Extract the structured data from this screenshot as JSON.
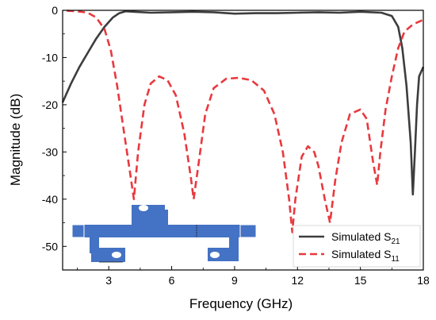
{
  "chart_data": {
    "type": "line",
    "xlabel": "Frequency (GHz)",
    "ylabel": "Magnitude (dB)",
    "xlim": [
      0.8,
      18
    ],
    "ylim": [
      -55,
      0
    ],
    "xticks": [
      3,
      6,
      9,
      12,
      15,
      18
    ],
    "yticks": [
      0,
      -10,
      -20,
      -30,
      -40,
      -50
    ],
    "grid": false,
    "legend_position": "bottom-right",
    "series": [
      {
        "name": "Simulated S21",
        "legend_main": "Simulated S",
        "legend_sub": "21",
        "color": "#3d3d3d",
        "style": "solid",
        "x": [
          0.8,
          1.2,
          1.6,
          2.0,
          2.4,
          2.8,
          3.2,
          3.5,
          3.8,
          4.2,
          5.0,
          6.0,
          7.0,
          8.0,
          9.0,
          10.0,
          11.0,
          12.0,
          13.0,
          14.0,
          15.0,
          16.0,
          16.5,
          16.8,
          17.0,
          17.2,
          17.4,
          17.5,
          17.6,
          17.7,
          17.8,
          18.0
        ],
        "y": [
          -19.5,
          -15.5,
          -12.0,
          -9.0,
          -6.0,
          -3.5,
          -1.5,
          -0.6,
          -0.2,
          -0.3,
          -0.5,
          -0.4,
          -0.3,
          -0.4,
          -0.7,
          -0.6,
          -0.6,
          -0.5,
          -0.4,
          -0.5,
          -0.3,
          -0.5,
          -1.2,
          -3.5,
          -8.0,
          -16.0,
          -28.0,
          -39.0,
          -30.0,
          -20.0,
          -14.0,
          -12.0
        ]
      },
      {
        "name": "Simulated S11",
        "legend_main": "Simulated S",
        "legend_sub": "11",
        "color": "#e8393f",
        "style": "dashed",
        "x": [
          1.0,
          1.5,
          2.0,
          2.4,
          2.8,
          3.1,
          3.4,
          3.7,
          4.0,
          4.2,
          4.4,
          4.7,
          5.0,
          5.4,
          5.8,
          6.2,
          6.6,
          6.9,
          7.05,
          7.3,
          7.6,
          8.0,
          8.6,
          9.2,
          9.8,
          10.4,
          10.9,
          11.3,
          11.6,
          11.75,
          11.9,
          12.2,
          12.5,
          12.8,
          13.0,
          13.3,
          13.55,
          13.8,
          14.1,
          14.5,
          15.0,
          15.3,
          15.6,
          15.8,
          15.95,
          16.2,
          16.5,
          16.8,
          17.1,
          17.5,
          18.0
        ],
        "y": [
          -0.1,
          -0.2,
          -0.5,
          -1.5,
          -4.0,
          -8.5,
          -16.0,
          -25.0,
          -34.0,
          -40.0,
          -30.0,
          -20.0,
          -15.5,
          -14.0,
          -14.8,
          -18.0,
          -26.0,
          -35.0,
          -40.0,
          -32.0,
          -22.0,
          -16.5,
          -14.5,
          -14.3,
          -14.8,
          -17.0,
          -22.0,
          -30.0,
          -40.0,
          -47.0,
          -40.0,
          -31.0,
          -28.8,
          -30.0,
          -33.0,
          -40.0,
          -45.0,
          -36.0,
          -28.0,
          -22.0,
          -21.0,
          -23.0,
          -32.0,
          -37.0,
          -30.0,
          -21.0,
          -14.0,
          -8.0,
          -4.5,
          -3.0,
          -2.0
        ]
      }
    ]
  }
}
